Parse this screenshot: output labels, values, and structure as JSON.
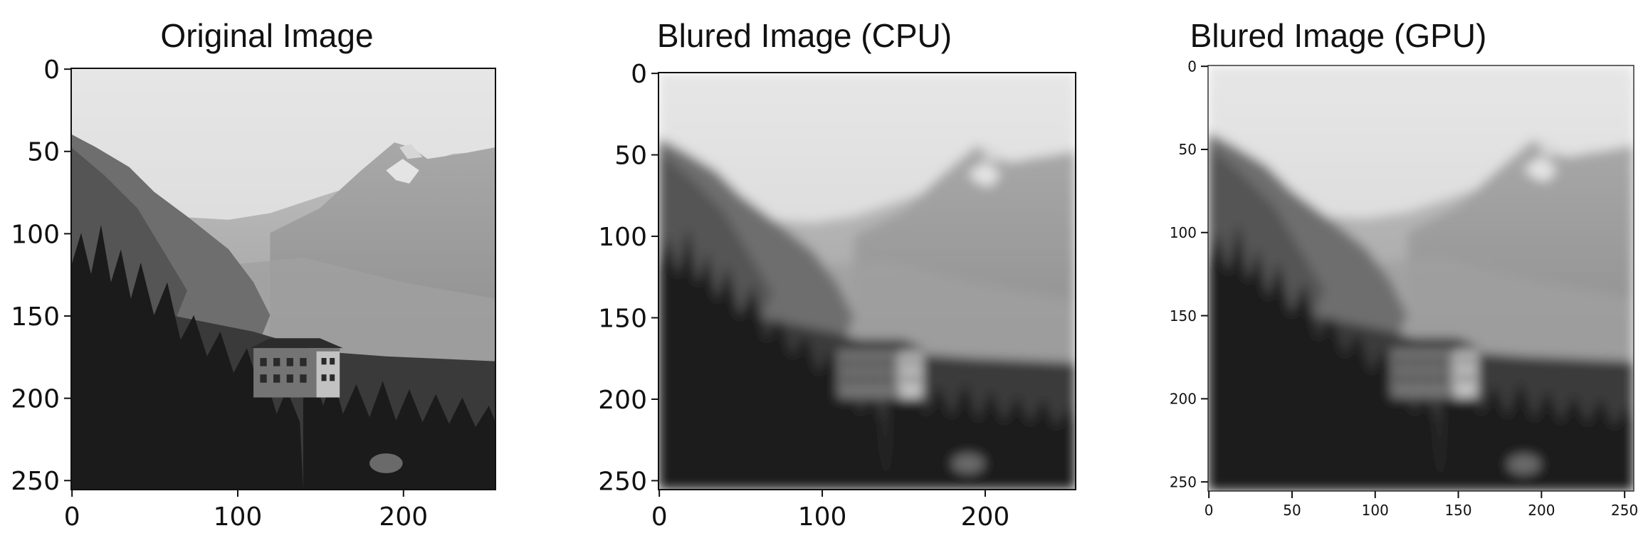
{
  "panels": [
    {
      "title": "Original Image",
      "x_ticks": [
        "0",
        "100",
        "200"
      ],
      "y_ticks": [
        "0",
        "50",
        "100",
        "150",
        "200",
        "250"
      ],
      "x_tick_values": [
        0,
        100,
        200
      ],
      "y_tick_values": [
        0,
        50,
        100,
        150,
        200,
        250
      ],
      "image_extent": [
        0,
        256
      ],
      "blur": "none"
    },
    {
      "title": "Blured Image (CPU)",
      "x_ticks": [
        "0",
        "100",
        "200"
      ],
      "y_ticks": [
        "0",
        "50",
        "100",
        "150",
        "200",
        "250"
      ],
      "x_tick_values": [
        0,
        100,
        200
      ],
      "y_tick_values": [
        0,
        50,
        100,
        150,
        200,
        250
      ],
      "image_extent": [
        0,
        256
      ],
      "blur": "gaussian"
    },
    {
      "title": "Blured Image (GPU)",
      "x_ticks": [
        "0",
        "50",
        "100",
        "150",
        "200",
        "250"
      ],
      "y_ticks": [
        "0",
        "50",
        "100",
        "150",
        "200",
        "250"
      ],
      "x_tick_values": [
        0,
        50,
        100,
        150,
        200,
        250
      ],
      "y_tick_values": [
        0,
        50,
        100,
        150,
        200,
        250
      ],
      "image_extent": [
        0,
        256
      ],
      "blur": "gaussian"
    }
  ],
  "colors": {
    "sky": "#d8d8d8",
    "mountain": "#9a9a9a",
    "forest": "#1c1c1c",
    "house": "#6c6c6c"
  }
}
